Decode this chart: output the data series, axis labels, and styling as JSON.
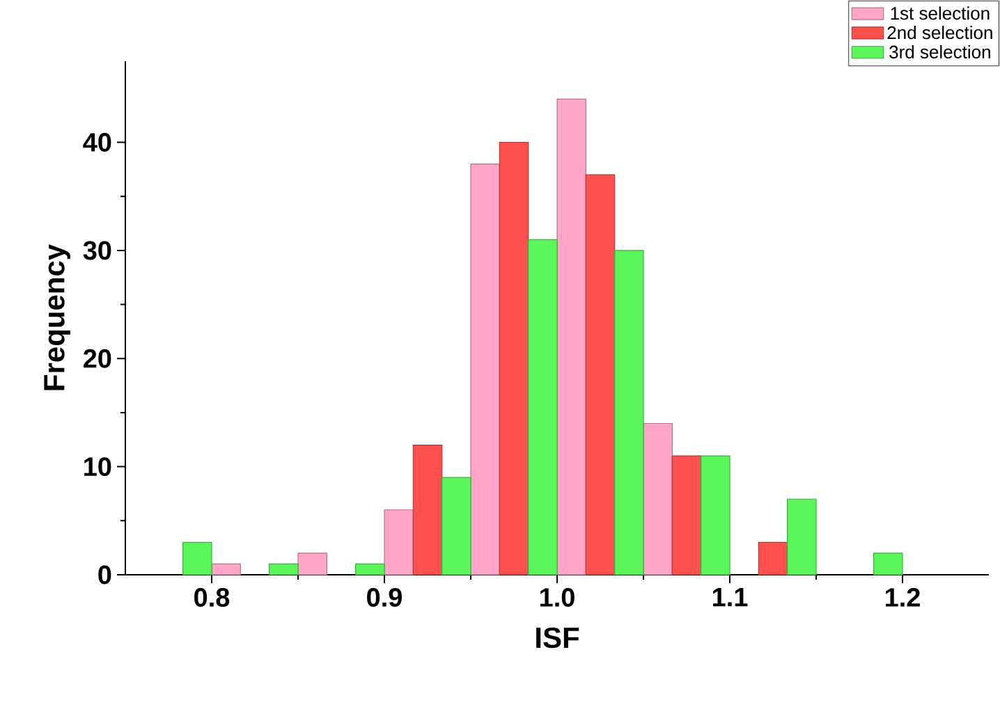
{
  "chart_data": {
    "type": "bar",
    "xlabel": "ISF",
    "ylabel": "Frequency",
    "x": [
      0.775,
      0.825,
      0.875,
      0.925,
      0.975,
      1.025,
      1.075,
      1.125,
      1.175
    ],
    "series": [
      {
        "name": "1st selection",
        "color": "#ffa6c9",
        "values": [
          null,
          1,
          2,
          6,
          38,
          44,
          14,
          null,
          null
        ]
      },
      {
        "name": "2nd selection",
        "color": "#ff5050",
        "values": [
          null,
          null,
          null,
          12,
          40,
          37,
          11,
          3,
          null
        ]
      },
      {
        "name": "3rd selection",
        "color": "#5cf55c",
        "values": [
          3,
          1,
          1,
          9,
          31,
          30,
          11,
          7,
          2
        ]
      }
    ],
    "xlim": [
      0.75,
      1.25
    ],
    "xticks": [
      {
        "value": 0.8,
        "label": "0.8"
      },
      {
        "value": 0.9,
        "label": "0.9"
      },
      {
        "value": 1.0,
        "label": "1.0"
      },
      {
        "value": 1.1,
        "label": "1.1"
      },
      {
        "value": 1.2,
        "label": "1.2"
      }
    ],
    "ylim": [
      0,
      47.5
    ],
    "yticks": [
      0,
      10,
      20,
      30,
      40
    ],
    "grid": false,
    "legend": "top right"
  }
}
